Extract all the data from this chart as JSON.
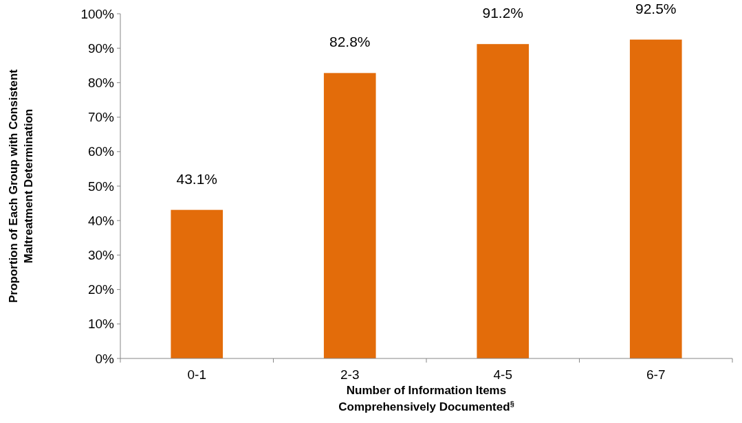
{
  "chart_data": {
    "type": "bar",
    "xlabel": "Number of Information Items\nComprehensively Documented$^{§}$",
    "ylabel": "Proportion of Each Group with Consistent\nMaltreatment Determination",
    "categories": [
      "0-1",
      "2-3",
      "4-5",
      "6-7"
    ],
    "values": [
      43.1,
      82.8,
      91.2,
      92.5
    ],
    "value_labels": [
      "43.1%",
      "82.8%",
      "91.2%",
      "92.5%"
    ],
    "color": "#e36c0a",
    "ylim": [
      0,
      100
    ],
    "yticks": [
      {
        "value": 0,
        "label": "0%"
      },
      {
        "value": 10,
        "label": "10%"
      },
      {
        "value": 20,
        "label": "20%"
      },
      {
        "value": 30,
        "label": "30%"
      },
      {
        "value": 40,
        "label": "40%"
      },
      {
        "value": 50,
        "label": "50%"
      },
      {
        "value": 60,
        "label": "60%"
      },
      {
        "value": 70,
        "label": "70%"
      },
      {
        "value": 80,
        "label": "80%"
      },
      {
        "value": 90,
        "label": "90%"
      },
      {
        "value": 100,
        "label": "100%"
      }
    ],
    "grid": false
  }
}
